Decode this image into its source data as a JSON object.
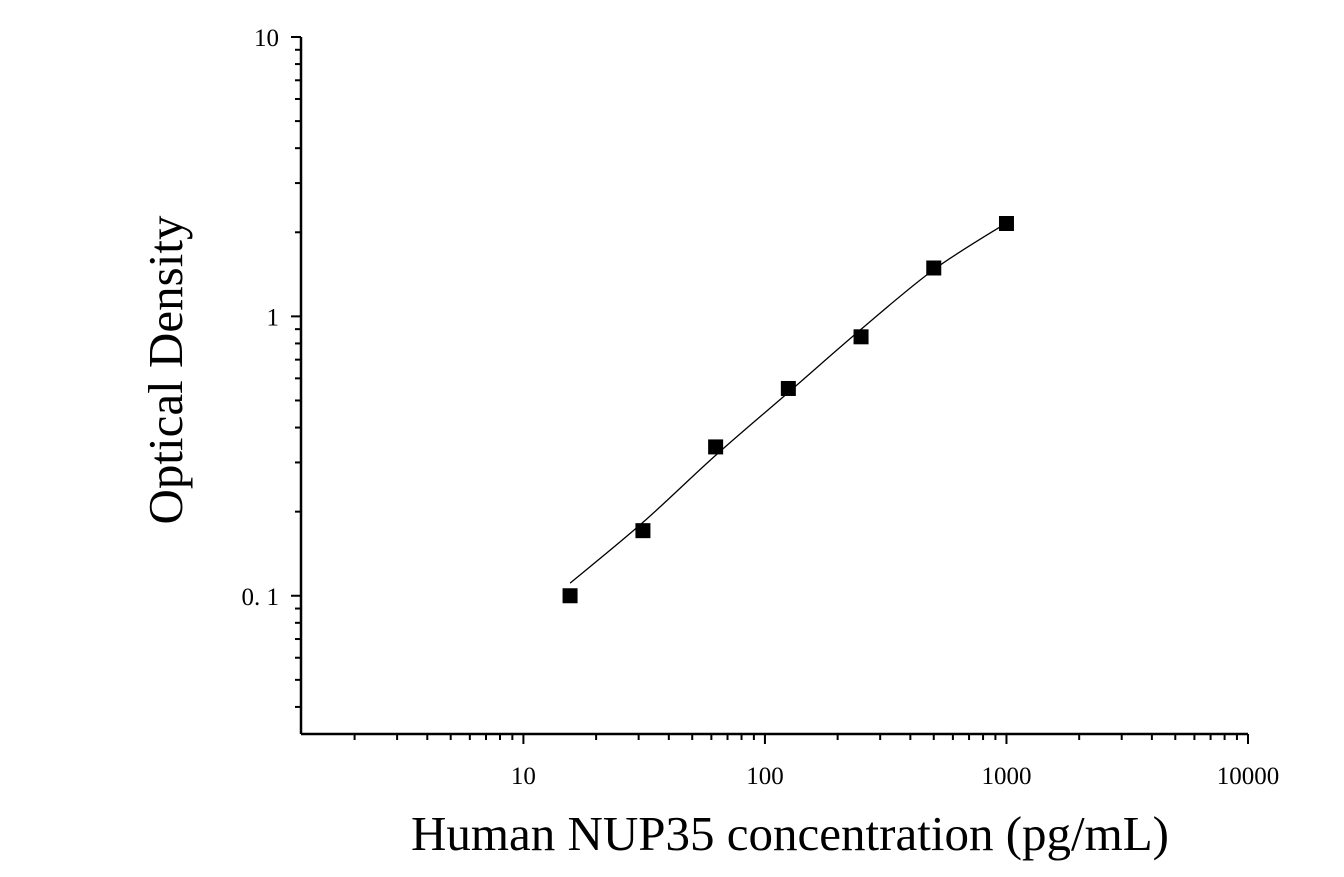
{
  "chart_data": {
    "type": "scatter",
    "title": "",
    "xlabel": "Human NUP35 concentration (pg/mL)",
    "ylabel": "Optical Density",
    "x_scale": "log",
    "y_scale": "log",
    "xlim": [
      1.2,
      10000
    ],
    "ylim": [
      0.032,
      10
    ],
    "x_ticks": [
      10,
      100,
      1000,
      10000
    ],
    "x_tick_labels": [
      "10",
      "100",
      "1000",
      "10000"
    ],
    "y_ticks": [
      0.1,
      1,
      10
    ],
    "y_tick_labels": [
      "0. 1",
      "1",
      "10"
    ],
    "grid": false,
    "legend": "none",
    "series": [
      {
        "marker": "square",
        "color": "#000000",
        "points": [
          {
            "x": 15.6,
            "y": 0.1
          },
          {
            "x": 31.25,
            "y": 0.171
          },
          {
            "x": 62.5,
            "y": 0.341
          },
          {
            "x": 125,
            "y": 0.552
          },
          {
            "x": 250,
            "y": 0.845
          },
          {
            "x": 500,
            "y": 1.49
          },
          {
            "x": 1000,
            "y": 2.15
          }
        ]
      }
    ],
    "fit_curve": {
      "color": "#000000",
      "points": [
        {
          "x": 15.6,
          "y": 0.111
        },
        {
          "x": 31.25,
          "y": 0.183
        },
        {
          "x": 62.5,
          "y": 0.318
        },
        {
          "x": 125,
          "y": 0.534
        },
        {
          "x": 250,
          "y": 0.899
        },
        {
          "x": 500,
          "y": 1.47
        },
        {
          "x": 1000,
          "y": 2.16
        }
      ]
    }
  }
}
